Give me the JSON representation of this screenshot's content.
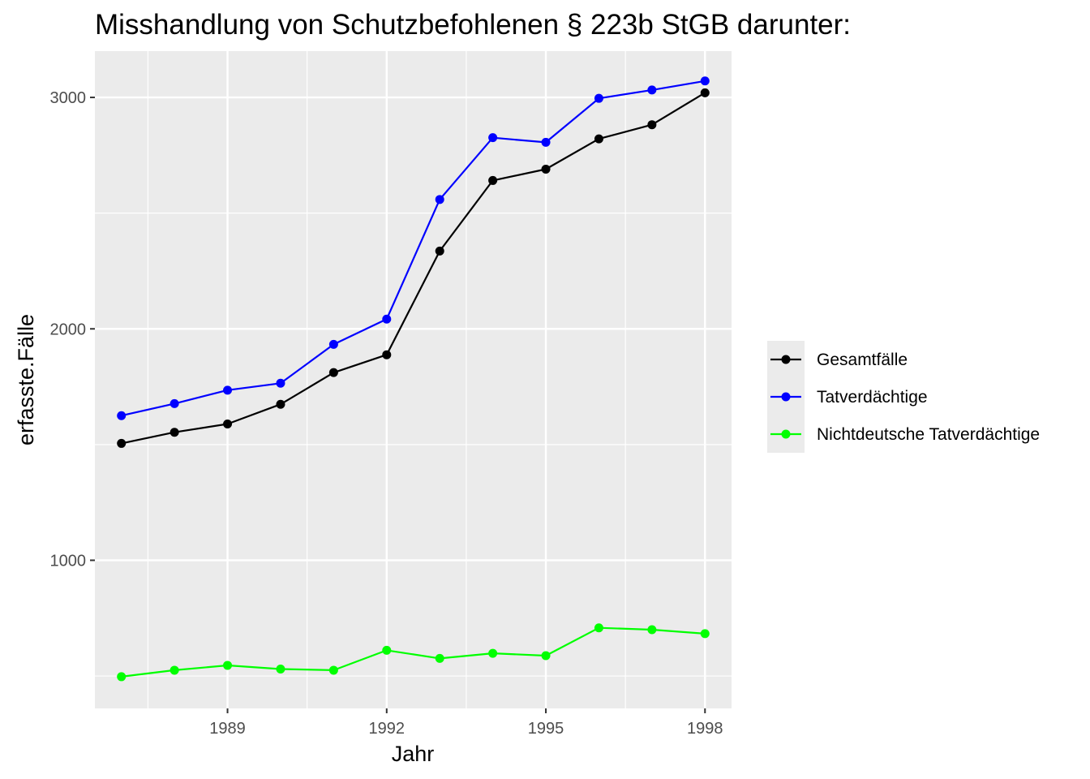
{
  "chart_data": {
    "type": "line",
    "title": "Misshandlung von Schutzbefohlenen § 223b StGB darunter:",
    "xlabel": "Jahr",
    "ylabel": "erfasste.Fälle",
    "x": [
      1987,
      1988,
      1989,
      1990,
      1991,
      1992,
      1993,
      1994,
      1995,
      1996,
      1997,
      1998
    ],
    "xlim": [
      1986.5,
      1998.5
    ],
    "ylim": [
      360,
      3200
    ],
    "x_ticks": [
      1989,
      1992,
      1995,
      1998
    ],
    "x_tick_labels": [
      "1989",
      "1992",
      "1995",
      "1998"
    ],
    "y_ticks": [
      1000,
      2000,
      3000
    ],
    "y_tick_labels": [
      "1000",
      "2000",
      "3000"
    ],
    "grid": true,
    "legend_position": "right",
    "series": [
      {
        "name": "Gesamtfälle",
        "color": "#000000",
        "values": [
          1505,
          1553,
          1589,
          1674,
          1811,
          1888,
          2336,
          2641,
          2690,
          2821,
          2882,
          3020
        ]
      },
      {
        "name": "Tatverdächtige",
        "color": "#0000ff",
        "values": [
          1625,
          1677,
          1735,
          1765,
          1933,
          2042,
          2559,
          2826,
          2806,
          2996,
          3032,
          3071
        ]
      },
      {
        "name": "Nichtdeutsche Tatverdächtige",
        "color": "#00ff00",
        "values": [
          497,
          525,
          546,
          530,
          525,
          611,
          576,
          598,
          588,
          708,
          700,
          683
        ]
      }
    ]
  }
}
